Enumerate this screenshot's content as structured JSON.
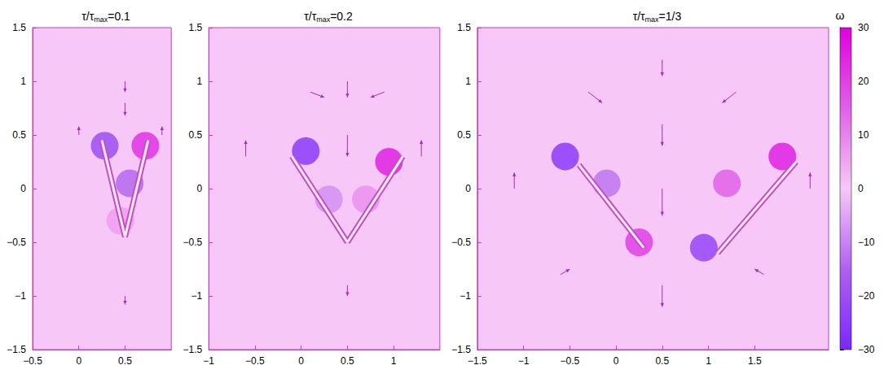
{
  "chart_data": [
    {
      "type": "field",
      "title": "τ/τmax=0.1",
      "xlim": [
        -0.5,
        1
      ],
      "xticks": [
        {
          "value": -0.5,
          "label": "−0.5"
        },
        0,
        0.5
      ],
      "ylim": [
        -1.5,
        1.5
      ],
      "yticks": [
        {
          "value": -1.5,
          "label": "−1.5"
        },
        {
          "value": -1,
          "label": "−1"
        },
        {
          "value": -0.5,
          "label": "−0.5"
        },
        0,
        0.5,
        1,
        1.5
      ],
      "plates": [
        [
          [
            0.5,
            -0.45
          ],
          [
            0.25,
            0.45
          ]
        ],
        [
          [
            0.5,
            -0.45
          ],
          [
            0.75,
            0.45
          ]
        ]
      ],
      "vortices": [
        [
          0.28,
          0.4,
          -20
        ],
        [
          0.72,
          0.4,
          22
        ],
        [
          0.55,
          0.05,
          -14
        ],
        [
          0.45,
          -0.3,
          6
        ]
      ],
      "vectors": [
        [
          0.5,
          1.0,
          0,
          -0.1
        ],
        [
          0.5,
          0.8,
          0,
          -0.12
        ],
        [
          0.0,
          0.5,
          0,
          0.08
        ],
        [
          0.9,
          0.5,
          0,
          0.08
        ],
        [
          0.5,
          -1.0,
          0,
          -0.08
        ]
      ]
    },
    {
      "type": "field",
      "title": "τ/τmax=0.2",
      "xlim": [
        -1,
        1.5
      ],
      "xticks": [
        {
          "value": -1,
          "label": "−1"
        },
        {
          "value": -0.5,
          "label": "−0.5"
        },
        0,
        0.5,
        1
      ],
      "ylim": [
        -1.5,
        1.5
      ],
      "yticks": [
        {
          "value": -1.5,
          "label": "−1.5"
        },
        {
          "value": -1,
          "label": "−1"
        },
        {
          "value": -0.5,
          "label": "−0.5"
        },
        0,
        0.5,
        1,
        1.5
      ],
      "plates": [
        [
          [
            0.5,
            -0.5
          ],
          [
            -0.1,
            0.3
          ]
        ],
        [
          [
            0.5,
            -0.5
          ],
          [
            1.1,
            0.3
          ]
        ]
      ],
      "vortices": [
        [
          0.05,
          0.35,
          -25
        ],
        [
          0.95,
          0.25,
          25
        ],
        [
          0.3,
          -0.1,
          -8
        ],
        [
          0.7,
          -0.1,
          8
        ]
      ],
      "vectors": [
        [
          0.5,
          1.0,
          0,
          -0.15
        ],
        [
          0.5,
          0.5,
          0,
          -0.2
        ],
        [
          -0.6,
          0.3,
          0,
          0.15
        ],
        [
          0.1,
          0.9,
          0.15,
          -0.05
        ],
        [
          1.3,
          0.3,
          0,
          0.15
        ],
        [
          0.9,
          0.9,
          -0.15,
          -0.05
        ],
        [
          0.5,
          -0.9,
          0,
          -0.1
        ]
      ]
    },
    {
      "type": "field",
      "title": "τ/τmax=1/3",
      "xlim": [
        -1.5,
        2.3
      ],
      "xticks": [
        {
          "value": -1.5,
          "label": "−1.5"
        },
        {
          "value": -1,
          "label": "−1"
        },
        {
          "value": -0.5,
          "label": "−0.5"
        },
        0,
        0.5,
        1,
        1.5
      ],
      "ylim": [
        -1.5,
        1.5
      ],
      "yticks": [
        {
          "value": -1.5,
          "label": "−1.5"
        },
        {
          "value": -1,
          "label": "−1"
        },
        {
          "value": -0.5,
          "label": "−0.5"
        },
        0,
        0.5,
        1,
        1.5
      ],
      "plates": [
        [
          [
            -0.4,
            0.22
          ],
          [
            0.3,
            -0.55
          ]
        ],
        [
          [
            1.1,
            -0.6
          ],
          [
            1.95,
            0.25
          ]
        ]
      ],
      "vortices": [
        [
          -0.55,
          0.3,
          -25
        ],
        [
          -0.1,
          0.05,
          -12
        ],
        [
          0.25,
          -0.5,
          20
        ],
        [
          1.2,
          0.05,
          15
        ],
        [
          1.8,
          0.3,
          25
        ],
        [
          0.95,
          -0.55,
          -22
        ]
      ],
      "vectors": [
        [
          0.5,
          1.2,
          0,
          -0.15
        ],
        [
          0.5,
          0.6,
          0,
          -0.2
        ],
        [
          0.5,
          0.0,
          0,
          -0.25
        ],
        [
          0.5,
          -0.9,
          0,
          -0.2
        ],
        [
          -1.1,
          0.0,
          0,
          0.15
        ],
        [
          2.1,
          0.0,
          0,
          0.15
        ],
        [
          -0.3,
          0.9,
          0.15,
          -0.1
        ],
        [
          1.3,
          0.9,
          -0.15,
          -0.1
        ],
        [
          -0.6,
          -0.8,
          0.1,
          0.05
        ],
        [
          1.6,
          -0.8,
          -0.1,
          0.05
        ]
      ],
      "colorbar": {
        "title": "ω",
        "range": [
          -30,
          30
        ],
        "ticks": [
          {
            "value": -30,
            "label": "−30"
          },
          {
            "value": -20,
            "label": "−20"
          },
          {
            "value": -10,
            "label": "−10"
          },
          0,
          10,
          20,
          30
        ],
        "colors": [
          "#7a28ff",
          "#b060f0",
          "#f7c8f7",
          "#e060e8",
          "#e000e0"
        ]
      }
    }
  ]
}
